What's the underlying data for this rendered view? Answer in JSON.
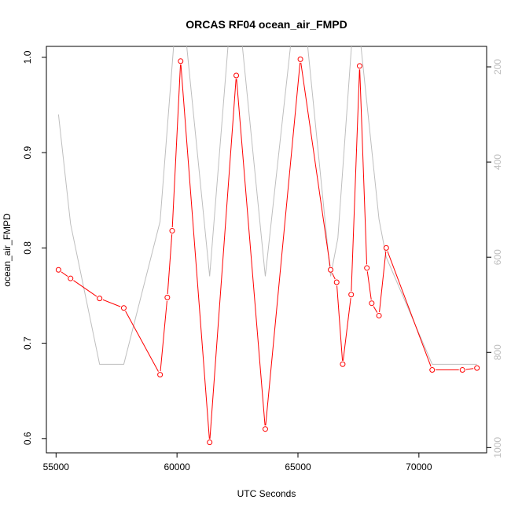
{
  "chart_data": {
    "type": "line",
    "title": "ORCAS RF04 ocean_air_FMPD",
    "xlabel": "UTC Seconds",
    "ylabel": "ocean_air_FMPD",
    "xlim": [
      54600,
      72800
    ],
    "ylim": [
      0.585,
      1.0115
    ],
    "y2lim": [
      1011,
      157
    ],
    "y2_reversed": true,
    "grid": false,
    "x_ticks": [
      55000,
      60000,
      65000,
      70000
    ],
    "y_ticks": [
      0.6,
      0.7,
      0.8,
      0.9,
      1.0
    ],
    "y_tick_labels": [
      "0.6",
      "0.7",
      "0.8",
      "0.9",
      "1.0"
    ],
    "y2_ticks": [
      200,
      400,
      600,
      800,
      1000
    ],
    "colors": {
      "primary": "#ff0000",
      "secondary": "#bebebe",
      "axis": "#000000"
    },
    "series": [
      {
        "axis": "left",
        "color": "#ff0000",
        "style": "line+points",
        "x": [
          55100,
          55600,
          56800,
          57800,
          59300,
          59600,
          59800,
          60150,
          61350,
          62450,
          63650,
          65100,
          66350,
          66600,
          66850,
          67200,
          67550,
          67850,
          68050,
          68350,
          68650,
          70550,
          71800,
          72400
        ],
        "y": [
          0.777,
          0.768,
          0.747,
          0.737,
          0.667,
          0.748,
          0.818,
          0.996,
          0.596,
          0.981,
          0.61,
          0.998,
          0.777,
          0.764,
          0.678,
          0.751,
          0.991,
          0.779,
          0.742,
          0.729,
          0.8,
          0.672,
          0.672,
          0.674
        ]
      },
      {
        "axis": "right",
        "color": "#bebebe",
        "style": "line",
        "x": [
          55100,
          55600,
          56800,
          57800,
          59300,
          59900,
          60350,
          61350,
          62150,
          62650,
          63650,
          64750,
          65350,
          66350,
          66650,
          67250,
          67550,
          68350,
          68650,
          70550,
          72400
        ],
        "y": [
          300,
          530,
          825,
          825,
          525,
          130,
          130,
          640,
          130,
          130,
          640,
          130,
          130,
          640,
          560,
          130,
          130,
          520,
          600,
          825,
          825
        ]
      }
    ]
  }
}
